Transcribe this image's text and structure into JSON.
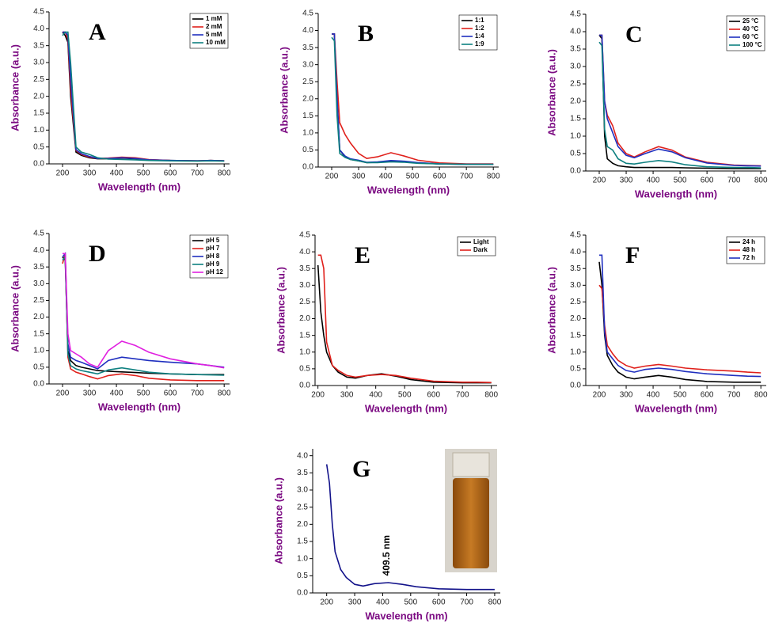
{
  "chart_data": [
    {
      "type": "line",
      "title": "A",
      "x_label": "Wavelength (nm)",
      "y_label": "Absorbance (a.u.)",
      "x": [
        200,
        210,
        220,
        230,
        250,
        270,
        300,
        330,
        370,
        420,
        470,
        520,
        600,
        700,
        750,
        800
      ],
      "xlim": [
        150,
        820
      ],
      "xticks": [
        200,
        300,
        400,
        500,
        600,
        700,
        800
      ],
      "ylim": [
        0,
        4.5
      ],
      "yticks": [
        {
          "value": 0,
          "label": "0.0"
        },
        0.5,
        {
          "value": 1,
          "label": "1.0"
        },
        1.5,
        {
          "value": 2,
          "label": "2.0"
        },
        2.5,
        {
          "value": 3,
          "label": "3.0"
        },
        3.5,
        {
          "value": 4,
          "label": "4.0"
        },
        4.5
      ],
      "series": [
        {
          "name": "1 mM",
          "color": "#000000",
          "values": [
            3.9,
            3.8,
            3.6,
            2.0,
            0.35,
            0.25,
            0.18,
            0.15,
            0.15,
            0.17,
            0.15,
            0.12,
            0.1,
            0.09,
            0.1,
            0.09
          ]
        },
        {
          "name": "2 mM",
          "color": "#e0201b",
          "values": [
            3.9,
            3.9,
            3.7,
            2.2,
            0.4,
            0.28,
            0.2,
            0.16,
            0.17,
            0.2,
            0.18,
            0.13,
            0.1,
            0.09,
            0.1,
            0.09
          ]
        },
        {
          "name": "5 mM",
          "color": "#1f2fbf",
          "values": [
            3.9,
            3.9,
            3.8,
            2.5,
            0.42,
            0.3,
            0.22,
            0.16,
            0.16,
            0.18,
            0.16,
            0.12,
            0.1,
            0.09,
            0.1,
            0.09
          ]
        },
        {
          "name": "10 mM",
          "color": "#0e8080",
          "values": [
            3.8,
            3.9,
            3.9,
            3.0,
            0.5,
            0.35,
            0.28,
            0.18,
            0.14,
            0.13,
            0.12,
            0.1,
            0.09,
            0.08,
            0.09,
            0.08
          ]
        }
      ]
    },
    {
      "type": "line",
      "title": "B",
      "x_label": "Wavelength (nm)",
      "y_label": "Absorbance (a.u.)",
      "x": [
        200,
        210,
        220,
        230,
        250,
        270,
        300,
        330,
        370,
        420,
        470,
        520,
        600,
        700,
        750,
        800
      ],
      "xlim": [
        150,
        820
      ],
      "xticks": [
        200,
        300,
        400,
        500,
        600,
        700,
        800
      ],
      "ylim": [
        0,
        4.5
      ],
      "yticks": [
        {
          "value": 0,
          "label": "0.0"
        },
        0.5,
        {
          "value": 1,
          "label": "1.0"
        },
        1.5,
        {
          "value": 2,
          "label": "2.0"
        },
        2.5,
        {
          "value": 3,
          "label": "3.0"
        },
        3.5,
        {
          "value": 4,
          "label": "4.0"
        },
        4.5
      ],
      "series": [
        {
          "name": "1:1",
          "color": "#000000",
          "values": [
            3.9,
            3.9,
            2.0,
            0.5,
            0.3,
            0.22,
            0.18,
            0.13,
            0.14,
            0.17,
            0.15,
            0.12,
            0.09,
            0.08,
            0.08,
            0.08
          ]
        },
        {
          "name": "1:2",
          "color": "#e0201b",
          "values": [
            3.9,
            3.9,
            2.5,
            1.3,
            0.95,
            0.7,
            0.4,
            0.25,
            0.3,
            0.42,
            0.32,
            0.2,
            0.12,
            0.09,
            0.09,
            0.09
          ]
        },
        {
          "name": "1:4",
          "color": "#1f2fbf",
          "values": [
            3.9,
            3.9,
            2.0,
            0.5,
            0.32,
            0.24,
            0.2,
            0.14,
            0.15,
            0.19,
            0.17,
            0.13,
            0.09,
            0.08,
            0.08,
            0.08
          ]
        },
        {
          "name": "1:9",
          "color": "#0e8080",
          "values": [
            3.8,
            3.7,
            1.5,
            0.4,
            0.28,
            0.22,
            0.18,
            0.13,
            0.13,
            0.15,
            0.14,
            0.11,
            0.09,
            0.08,
            0.08,
            0.08
          ]
        }
      ]
    },
    {
      "type": "line",
      "title": "C",
      "x_label": "Wavelength (nm)",
      "y_label": "Absorbance (a.u.)",
      "x": [
        200,
        210,
        220,
        230,
        250,
        270,
        300,
        330,
        370,
        420,
        470,
        520,
        600,
        700,
        750,
        800
      ],
      "xlim": [
        150,
        820
      ],
      "xticks": [
        200,
        300,
        400,
        500,
        600,
        700,
        800
      ],
      "ylim": [
        0,
        4.5
      ],
      "yticks": [
        {
          "value": 0,
          "label": "0.0"
        },
        0.5,
        {
          "value": 1,
          "label": "1.0"
        },
        1.5,
        {
          "value": 2,
          "label": "2.0"
        },
        2.5,
        {
          "value": 3,
          "label": "3.0"
        },
        3.5,
        {
          "value": 4,
          "label": "4.0"
        },
        4.5
      ],
      "series": [
        {
          "name": "25 °C",
          "color": "#000000",
          "values": [
            3.9,
            3.8,
            1.0,
            0.35,
            0.22,
            0.15,
            0.12,
            0.1,
            0.1,
            0.1,
            0.1,
            0.09,
            0.08,
            0.07,
            0.07,
            0.07
          ]
        },
        {
          "name": "40 °C",
          "color": "#e0201b",
          "values": [
            3.9,
            3.9,
            2.0,
            1.6,
            1.3,
            0.8,
            0.5,
            0.4,
            0.55,
            0.7,
            0.6,
            0.4,
            0.25,
            0.17,
            0.16,
            0.15
          ]
        },
        {
          "name": "60 °C",
          "color": "#1f2fbf",
          "values": [
            3.9,
            3.9,
            2.0,
            1.5,
            1.1,
            0.7,
            0.45,
            0.38,
            0.5,
            0.63,
            0.55,
            0.38,
            0.23,
            0.16,
            0.15,
            0.14
          ]
        },
        {
          "name": "100 °C",
          "color": "#0e8080",
          "values": [
            3.7,
            3.6,
            1.2,
            0.7,
            0.6,
            0.35,
            0.22,
            0.2,
            0.25,
            0.3,
            0.26,
            0.18,
            0.12,
            0.1,
            0.1,
            0.09
          ]
        }
      ]
    },
    {
      "type": "line",
      "title": "D",
      "x_label": "Wavelength (nm)",
      "y_label": "Absorbance (a.u.)",
      "x": [
        200,
        210,
        220,
        230,
        250,
        270,
        300,
        330,
        370,
        420,
        470,
        520,
        600,
        700,
        750,
        800
      ],
      "xlim": [
        150,
        820
      ],
      "xticks": [
        200,
        300,
        400,
        500,
        600,
        700,
        800
      ],
      "ylim": [
        0,
        4.5
      ],
      "yticks": [
        {
          "value": 0,
          "label": "0.0"
        },
        0.5,
        {
          "value": 1,
          "label": "1.0"
        },
        1.5,
        {
          "value": 2,
          "label": "2.0"
        },
        2.5,
        {
          "value": 3,
          "label": "3.0"
        },
        3.5,
        {
          "value": 4,
          "label": "4.0"
        },
        4.5
      ],
      "series": [
        {
          "name": "pH 5",
          "color": "#000000",
          "values": [
            3.8,
            3.7,
            1.0,
            0.7,
            0.55,
            0.5,
            0.45,
            0.4,
            0.38,
            0.36,
            0.34,
            0.32,
            0.3,
            0.28,
            0.28,
            0.28
          ]
        },
        {
          "name": "pH 7",
          "color": "#e0201b",
          "values": [
            3.6,
            3.9,
            0.8,
            0.45,
            0.35,
            0.3,
            0.22,
            0.15,
            0.25,
            0.3,
            0.25,
            0.17,
            0.12,
            0.1,
            0.1,
            0.1
          ]
        },
        {
          "name": "pH 8",
          "color": "#1f2fbf",
          "values": [
            3.8,
            3.9,
            1.2,
            0.8,
            0.7,
            0.65,
            0.55,
            0.45,
            0.7,
            0.8,
            0.75,
            0.7,
            0.65,
            0.6,
            0.55,
            0.5
          ]
        },
        {
          "name": "pH 9",
          "color": "#0e8080",
          "values": [
            3.7,
            3.8,
            0.9,
            0.55,
            0.45,
            0.4,
            0.35,
            0.3,
            0.42,
            0.48,
            0.42,
            0.35,
            0.3,
            0.28,
            0.27,
            0.26
          ]
        },
        {
          "name": "pH 12",
          "color": "#e020e0",
          "values": [
            3.9,
            3.9,
            1.5,
            1.0,
            0.9,
            0.8,
            0.6,
            0.5,
            1.0,
            1.28,
            1.15,
            0.95,
            0.75,
            0.6,
            0.55,
            0.48
          ]
        }
      ]
    },
    {
      "type": "line",
      "title": "E",
      "x_label": "Wavelength (nm)",
      "y_label": "Absorbance (a.u.)",
      "x": [
        200,
        210,
        220,
        230,
        250,
        270,
        300,
        330,
        370,
        420,
        470,
        520,
        600,
        700,
        750,
        800
      ],
      "xlim": [
        190,
        820
      ],
      "xticks": [
        200,
        300,
        400,
        500,
        600,
        700,
        800
      ],
      "ylim": [
        0,
        4.5
      ],
      "yticks": [
        {
          "value": 0,
          "label": "0.0"
        },
        0.5,
        {
          "value": 1,
          "label": "1.0"
        },
        1.5,
        {
          "value": 2,
          "label": "2.0"
        },
        2.5,
        {
          "value": 3,
          "label": "3.0"
        },
        3.5,
        {
          "value": 4,
          "label": "4.0"
        },
        4.5
      ],
      "series": [
        {
          "name": "Light",
          "color": "#000000",
          "values": [
            3.6,
            2.2,
            1.5,
            1.0,
            0.6,
            0.4,
            0.25,
            0.22,
            0.3,
            0.35,
            0.28,
            0.18,
            0.1,
            0.08,
            0.08,
            0.08
          ]
        },
        {
          "name": "Dark",
          "color": "#e0201b",
          "values": [
            3.9,
            3.9,
            3.5,
            1.3,
            0.6,
            0.45,
            0.3,
            0.25,
            0.3,
            0.33,
            0.3,
            0.22,
            0.13,
            0.1,
            0.1,
            0.09
          ]
        }
      ]
    },
    {
      "type": "line",
      "title": "F",
      "x_label": "Wavelength (nm)",
      "y_label": "Absorbance (a.u.)",
      "x": [
        200,
        210,
        220,
        230,
        250,
        270,
        300,
        330,
        370,
        420,
        470,
        520,
        600,
        700,
        750,
        800
      ],
      "xlim": [
        150,
        820
      ],
      "xticks": [
        200,
        300,
        400,
        500,
        600,
        700,
        800
      ],
      "ylim": [
        0,
        4.5
      ],
      "yticks": [
        {
          "value": 0,
          "label": "0.0"
        },
        0.5,
        {
          "value": 1,
          "label": "1.0"
        },
        1.5,
        {
          "value": 2,
          "label": "2.0"
        },
        2.5,
        {
          "value": 3,
          "label": "3.0"
        },
        3.5,
        {
          "value": 4,
          "label": "4.0"
        },
        4.5
      ],
      "series": [
        {
          "name": "24 h",
          "color": "#000000",
          "values": [
            3.7,
            3.0,
            1.5,
            0.9,
            0.6,
            0.4,
            0.25,
            0.2,
            0.25,
            0.3,
            0.25,
            0.18,
            0.12,
            0.1,
            0.1,
            0.1
          ]
        },
        {
          "name": "48 h",
          "color": "#e0201b",
          "values": [
            3.0,
            2.9,
            1.8,
            1.2,
            0.95,
            0.75,
            0.6,
            0.52,
            0.58,
            0.63,
            0.58,
            0.52,
            0.47,
            0.43,
            0.4,
            0.38
          ]
        },
        {
          "name": "72 h",
          "color": "#1f2fbf",
          "values": [
            3.9,
            3.9,
            1.6,
            1.0,
            0.8,
            0.6,
            0.45,
            0.4,
            0.48,
            0.52,
            0.48,
            0.42,
            0.35,
            0.3,
            0.28,
            0.27
          ]
        }
      ]
    },
    {
      "type": "line",
      "title": "G",
      "x_label": "Wavelength (nm)",
      "y_label": "Absorbance (a.u.)",
      "annotation": "409.5 nm",
      "x": [
        200,
        210,
        220,
        230,
        250,
        270,
        300,
        330,
        370,
        420,
        470,
        520,
        600,
        700,
        750,
        800
      ],
      "xlim": [
        150,
        820
      ],
      "xticks": [
        200,
        300,
        400,
        500,
        600,
        700,
        800
      ],
      "ylim": [
        0,
        4.2
      ],
      "yticks": [
        {
          "value": 0,
          "label": "0.0"
        },
        0.5,
        {
          "value": 1,
          "label": "1.0"
        },
        1.5,
        {
          "value": 2,
          "label": "2.0"
        },
        2.5,
        {
          "value": 3,
          "label": "3.0"
        },
        3.5,
        {
          "value": 4,
          "label": "4.0"
        }
      ],
      "series": [
        {
          "color": "#12128a",
          "values": [
            3.75,
            3.2,
            2.0,
            1.2,
            0.68,
            0.45,
            0.25,
            0.2,
            0.27,
            0.3,
            0.25,
            0.18,
            0.12,
            0.1,
            0.1,
            0.1
          ]
        }
      ]
    }
  ]
}
